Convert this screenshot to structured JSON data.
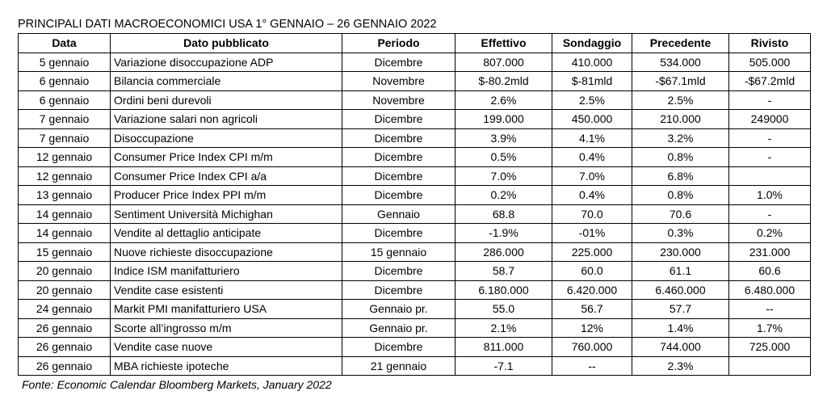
{
  "title": "PRINCIPALI DATI MACROECONOMICI USA  1° GENNAIO – 26 GENNAIO 2022",
  "headers": {
    "data": "Data",
    "dato": "Dato pubblicato",
    "periodo": "Periodo",
    "effettivo": "Effettivo",
    "sondaggio": "Sondaggio",
    "precedente": "Precedente",
    "rivisto": "Rivisto"
  },
  "rows": [
    {
      "data": "5 gennaio",
      "dato": "Variazione disoccupazione ADP",
      "periodo": "Dicembre",
      "effettivo": "807.000",
      "sondaggio": "410.000",
      "precedente": "534.000",
      "rivisto": "505.000"
    },
    {
      "data": "6 gennaio",
      "dato": "Bilancia commerciale",
      "periodo": "Novembre",
      "effettivo": "$-80.2mld",
      "sondaggio": "$-81mld",
      "precedente": "-$67.1mld",
      "rivisto": "-$67.2mld"
    },
    {
      "data": "6 gennaio",
      "dato": "Ordini beni durevoli",
      "periodo": "Novembre",
      "effettivo": "2.6%",
      "sondaggio": "2.5%",
      "precedente": "2.5%",
      "rivisto": "-"
    },
    {
      "data": "7 gennaio",
      "dato": "Variazione salari non agricoli",
      "periodo": "Dicembre",
      "effettivo": "199.000",
      "sondaggio": "450.000",
      "precedente": "210.000",
      "rivisto": "249000"
    },
    {
      "data": "7 gennaio",
      "dato": "Disoccupazione",
      "periodo": "Dicembre",
      "effettivo": "3.9%",
      "sondaggio": "4.1%",
      "precedente": "3.2%",
      "rivisto": "-"
    },
    {
      "data": "12 gennaio",
      "dato": "Consumer Price Index CPI  m/m",
      "periodo": "Dicembre",
      "effettivo": "0.5%",
      "sondaggio": "0.4%",
      "precedente": "0.8%",
      "rivisto": "-"
    },
    {
      "data": "12 gennaio",
      "dato": "Consumer Price Index CPI  a/a",
      "periodo": "Dicembre",
      "effettivo": "7.0%",
      "sondaggio": "7.0%",
      "precedente": "6.8%",
      "rivisto": ""
    },
    {
      "data": "13 gennaio",
      "dato": "Producer Price Index PPI  m/m",
      "periodo": "Dicembre",
      "effettivo": "0.2%",
      "sondaggio": "0.4%",
      "precedente": "0.8%",
      "rivisto": "1.0%"
    },
    {
      "data": "14 gennaio",
      "dato": "Sentiment Università Michighan",
      "periodo": "Gennaio",
      "effettivo": "68.8",
      "sondaggio": "70.0",
      "precedente": "70.6",
      "rivisto": "-"
    },
    {
      "data": "14 gennaio",
      "dato": "Vendite al dettaglio anticipate",
      "periodo": "Dicembre",
      "effettivo": "-1.9%",
      "sondaggio": "-01%",
      "precedente": "0.3%",
      "rivisto": "0.2%"
    },
    {
      "data": "15 gennaio",
      "dato": "Nuove richieste disoccupazione",
      "periodo": "15 gennaio",
      "effettivo": "286.000",
      "sondaggio": "225.000",
      "precedente": "230.000",
      "rivisto": "231.000"
    },
    {
      "data": "20 gennaio",
      "dato": "Indice ISM manifatturiero",
      "periodo": "Dicembre",
      "effettivo": "58.7",
      "sondaggio": "60.0",
      "precedente": "61.1",
      "rivisto": "60.6"
    },
    {
      "data": "20 gennaio",
      "dato": "Vendite case esistenti",
      "periodo": "Dicembre",
      "effettivo": "6.180.000",
      "sondaggio": "6.420.000",
      "precedente": "6.460.000",
      "rivisto": "6.480.000"
    },
    {
      "data": "24 gennaio",
      "dato": "Markit PMI manifatturiero USA",
      "periodo": "Gennaio pr.",
      "effettivo": "55.0",
      "sondaggio": "56.7",
      "precedente": "57.7",
      "rivisto": "--"
    },
    {
      "data": "26 gennaio",
      "dato": "Scorte all’ingrosso m/m",
      "periodo": "Gennaio pr.",
      "effettivo": "2.1%",
      "sondaggio": "12%",
      "precedente": "1.4%",
      "rivisto": "1.7%"
    },
    {
      "data": "26 gennaio",
      "dato": "Vendite case nuove",
      "periodo": "Dicembre",
      "effettivo": "811.000",
      "sondaggio": "760.000",
      "precedente": "744.000",
      "rivisto": "725.000"
    },
    {
      "data": "26 gennaio",
      "dato": "MBA richieste ipoteche",
      "periodo": "21 gennaio",
      "effettivo": "-7.1",
      "sondaggio": "--",
      "precedente": "2.3%",
      "rivisto": ""
    }
  ],
  "source": "Fonte: Economic Calendar Bloomberg Markets, January 2022"
}
